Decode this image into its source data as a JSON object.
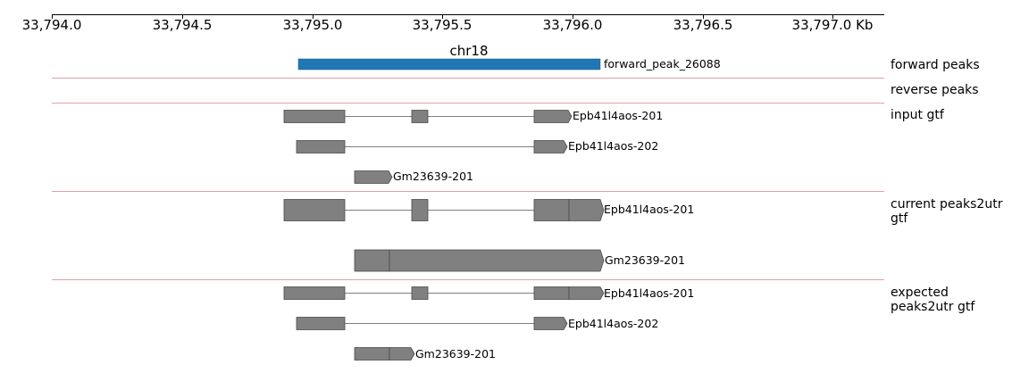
{
  "axis": {
    "ticks": [
      "33,794.0",
      "33,794.5",
      "33,795.0",
      "33,795.5",
      "33,796.0",
      "33,796.5",
      "33,797.0 Kb"
    ],
    "chromosome": "chr18"
  },
  "colors": {
    "forward_peak": "#1f77b4",
    "feature_fill": "#808080",
    "feature_stroke": "#4a4a4a",
    "separator": "#e0a0a8"
  },
  "tracks": [
    {
      "label": "forward peaks"
    },
    {
      "label": "reverse peaks"
    },
    {
      "label": "input gtf"
    },
    {
      "label": "current peaks2utr gtf"
    },
    {
      "label": "expected peaks2utr gtf"
    }
  ],
  "features": {
    "forward_peak": "forward_peak_26088",
    "input_1": "Epb41l4aos-201",
    "input_2": "Epb41l4aos-202",
    "input_3": "Gm23639-201",
    "current_1": "Epb41l4aos-201",
    "current_2": "Gm23639-201",
    "expected_1": "Epb41l4aos-201",
    "expected_2": "Epb41l4aos-202",
    "expected_3": "Gm23639-201"
  }
}
